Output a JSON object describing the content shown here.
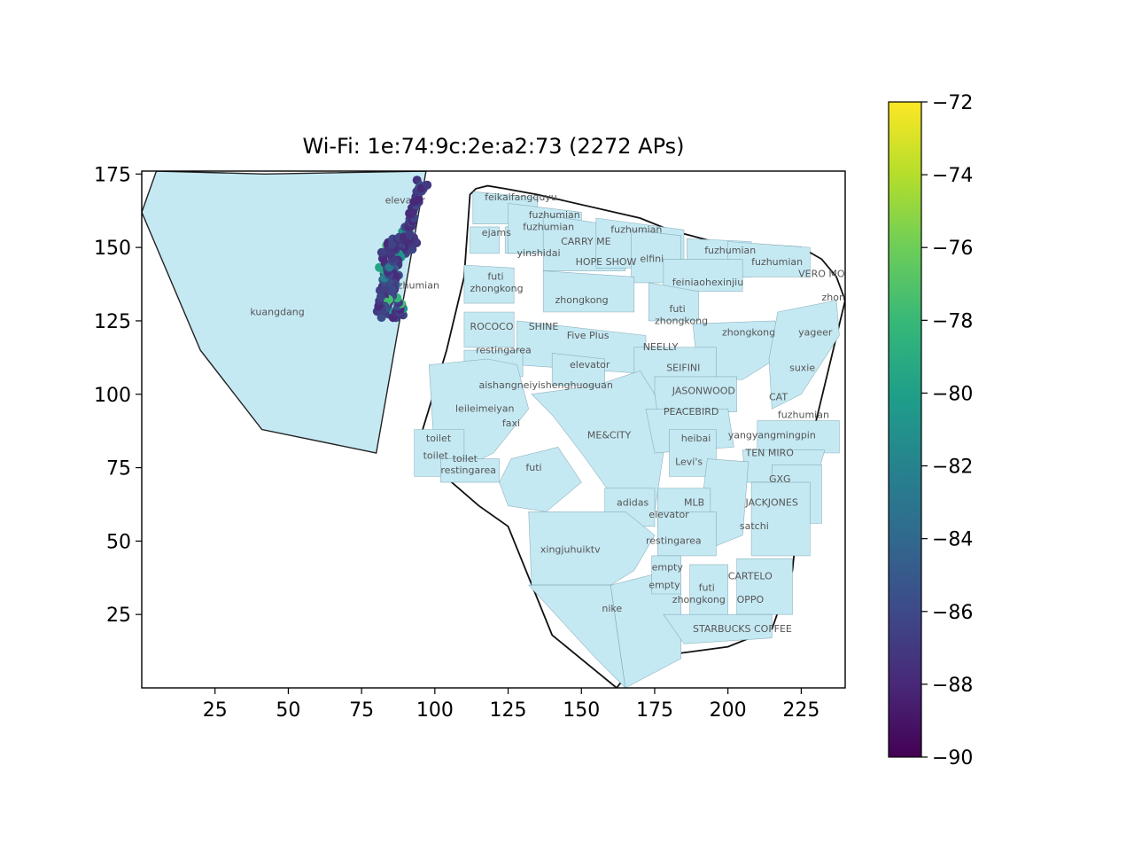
{
  "chart_data": {
    "type": "scatter",
    "title": "Wi-Fi: 1e:74:9c:2e:a2:73 (2272 APs)",
    "xlabel": "",
    "ylabel": "",
    "xlim": [
      0,
      240
    ],
    "ylim": [
      0,
      176
    ],
    "xticks": [
      25,
      50,
      75,
      100,
      125,
      150,
      175,
      200,
      225
    ],
    "yticks": [
      25,
      50,
      75,
      100,
      125,
      150,
      175
    ],
    "colorbar": {
      "colormap": "viridis",
      "range": [
        -90,
        -72
      ],
      "ticks": [
        -90,
        -88,
        -86,
        -84,
        -82,
        -80,
        -78,
        -76,
        -74,
        -72
      ],
      "tick_labels": [
        "−90",
        "−88",
        "−86",
        "−84",
        "−82",
        "−80",
        "−78",
        "−76",
        "−74",
        "−72"
      ]
    },
    "left_building": [
      [
        0,
        162
      ],
      [
        5,
        176
      ],
      [
        42,
        175
      ],
      [
        97,
        176
      ],
      [
        80,
        80
      ],
      [
        41,
        88
      ],
      [
        20,
        115
      ]
    ],
    "right_outline": [
      [
        112,
        168
      ],
      [
        114,
        170
      ],
      [
        118,
        171
      ],
      [
        124,
        170
      ],
      [
        135,
        168
      ],
      [
        170,
        160
      ],
      [
        180,
        156
      ],
      [
        195,
        152
      ],
      [
        210,
        151
      ],
      [
        225,
        150
      ],
      [
        232,
        146
      ],
      [
        237,
        140
      ],
      [
        240,
        132
      ],
      [
        225,
        70
      ],
      [
        222,
        40
      ],
      [
        215,
        20
      ],
      [
        200,
        14
      ],
      [
        170,
        10
      ],
      [
        162,
        0
      ],
      [
        140,
        18
      ],
      [
        125,
        55
      ],
      [
        115,
        62
      ],
      [
        100,
        75
      ],
      [
        95,
        78
      ],
      [
        94,
        82
      ],
      [
        98,
        95
      ],
      [
        104,
        115
      ],
      [
        110,
        140
      ]
    ],
    "shops": [
      [
        [
          113,
          169
        ],
        [
          135,
          167
        ],
        [
          135,
          158
        ],
        [
          113,
          158
        ]
      ],
      [
        [
          112,
          157
        ],
        [
          122,
          157
        ],
        [
          122,
          148
        ],
        [
          112,
          148
        ]
      ],
      [
        [
          124,
          157
        ],
        [
          134,
          157
        ],
        [
          134,
          148
        ],
        [
          124,
          148
        ]
      ],
      [
        [
          125,
          165
        ],
        [
          150,
          162
        ],
        [
          150,
          148
        ],
        [
          125,
          148
        ]
      ],
      [
        [
          137,
          161
        ],
        [
          165,
          157
        ],
        [
          165,
          142
        ],
        [
          137,
          142
        ]
      ],
      [
        [
          155,
          160
        ],
        [
          185,
          156
        ],
        [
          185,
          143
        ],
        [
          155,
          143
        ]
      ],
      [
        [
          167,
          156
        ],
        [
          184,
          154
        ],
        [
          184,
          138
        ],
        [
          167,
          138
        ]
      ],
      [
        [
          186,
          153
        ],
        [
          208,
          152
        ],
        [
          208,
          140
        ],
        [
          186,
          140
        ]
      ],
      [
        [
          200,
          152
        ],
        [
          228,
          150
        ],
        [
          228,
          140
        ],
        [
          200,
          140
        ]
      ],
      [
        [
          178,
          146
        ],
        [
          205,
          146
        ],
        [
          205,
          135
        ],
        [
          178,
          135
        ]
      ],
      [
        [
          110,
          144
        ],
        [
          127,
          143
        ],
        [
          127,
          131
        ],
        [
          110,
          131
        ]
      ],
      [
        [
          137,
          142
        ],
        [
          168,
          140
        ],
        [
          168,
          128
        ],
        [
          137,
          128
        ]
      ],
      [
        [
          173,
          138
        ],
        [
          190,
          135
        ],
        [
          190,
          125
        ],
        [
          173,
          125
        ]
      ],
      [
        [
          110,
          128
        ],
        [
          127,
          128
        ],
        [
          127,
          116
        ],
        [
          110,
          116
        ]
      ],
      [
        [
          128,
          125
        ],
        [
          172,
          120
        ],
        [
          172,
          107
        ],
        [
          128,
          110
        ]
      ],
      [
        [
          188,
          124
        ],
        [
          216,
          125
        ],
        [
          221,
          115
        ],
        [
          205,
          105
        ],
        [
          190,
          105
        ]
      ],
      [
        [
          217,
          128
        ],
        [
          237,
          132
        ],
        [
          238,
          120
        ],
        [
          225,
          100
        ],
        [
          215,
          95
        ],
        [
          214,
          112
        ]
      ],
      [
        [
          110,
          115
        ],
        [
          130,
          115
        ],
        [
          130,
          106
        ],
        [
          110,
          106
        ]
      ],
      [
        [
          140,
          114
        ],
        [
          158,
          112
        ],
        [
          158,
          103
        ],
        [
          140,
          103
        ]
      ],
      [
        [
          168,
          116
        ],
        [
          196,
          116
        ],
        [
          196,
          100
        ],
        [
          168,
          100
        ]
      ],
      [
        [
          175,
          106
        ],
        [
          203,
          106
        ],
        [
          203,
          94
        ],
        [
          175,
          94
        ]
      ],
      [
        [
          98,
          110
        ],
        [
          118,
          112
        ],
        [
          128,
          110
        ],
        [
          132,
          95
        ],
        [
          120,
          80
        ],
        [
          110,
          75
        ],
        [
          100,
          78
        ]
      ],
      [
        [
          133,
          100
        ],
        [
          155,
          103
        ],
        [
          170,
          108
        ],
        [
          175,
          100
        ],
        [
          178,
          80
        ],
        [
          175,
          60
        ],
        [
          168,
          55
        ],
        [
          150,
          80
        ],
        [
          140,
          93
        ]
      ],
      [
        [
          172,
          95
        ],
        [
          200,
          95
        ],
        [
          202,
          82
        ],
        [
          175,
          80
        ]
      ],
      [
        [
          180,
          88
        ],
        [
          196,
          88
        ],
        [
          196,
          72
        ],
        [
          180,
          72
        ]
      ],
      [
        [
          210,
          91
        ],
        [
          238,
          91
        ],
        [
          238,
          80
        ],
        [
          210,
          80
        ]
      ],
      [
        [
          205,
          81
        ],
        [
          233,
          81
        ],
        [
          230,
          70
        ],
        [
          206,
          70
        ]
      ],
      [
        [
          215,
          76
        ],
        [
          232,
          76
        ],
        [
          232,
          56
        ],
        [
          215,
          56
        ]
      ],
      [
        [
          208,
          70
        ],
        [
          228,
          70
        ],
        [
          228,
          45
        ],
        [
          208,
          45
        ]
      ],
      [
        [
          193,
          78
        ],
        [
          207,
          77
        ],
        [
          205,
          52
        ],
        [
          195,
          48
        ],
        [
          190,
          55
        ]
      ],
      [
        [
          176,
          68
        ],
        [
          194,
          68
        ],
        [
          194,
          55
        ],
        [
          176,
          55
        ]
      ],
      [
        [
          176,
          60
        ],
        [
          196,
          60
        ],
        [
          196,
          45
        ],
        [
          176,
          45
        ]
      ],
      [
        [
          158,
          68
        ],
        [
          175,
          68
        ],
        [
          175,
          55
        ],
        [
          158,
          55
        ]
      ],
      [
        [
          93,
          88
        ],
        [
          110,
          88
        ],
        [
          110,
          72
        ],
        [
          93,
          72
        ]
      ],
      [
        [
          102,
          78
        ],
        [
          122,
          78
        ],
        [
          122,
          70
        ],
        [
          102,
          70
        ]
      ],
      [
        [
          126,
          78
        ],
        [
          142,
          82
        ],
        [
          150,
          70
        ],
        [
          138,
          60
        ],
        [
          125,
          62
        ],
        [
          122,
          70
        ]
      ],
      [
        [
          132,
          60
        ],
        [
          165,
          60
        ],
        [
          175,
          52
        ],
        [
          168,
          40
        ],
        [
          160,
          35
        ],
        [
          133,
          35
        ]
      ],
      [
        [
          132,
          35
        ],
        [
          160,
          35
        ],
        [
          165,
          0
        ],
        [
          155,
          10
        ],
        [
          132,
          35
        ]
      ],
      [
        [
          160,
          35
        ],
        [
          180,
          40
        ],
        [
          184,
          35
        ],
        [
          184,
          10
        ],
        [
          165,
          0
        ]
      ],
      [
        [
          174,
          45
        ],
        [
          184,
          45
        ],
        [
          184,
          32
        ],
        [
          174,
          32
        ]
      ],
      [
        [
          187,
          42
        ],
        [
          200,
          42
        ],
        [
          200,
          20
        ],
        [
          187,
          20
        ]
      ],
      [
        [
          203,
          44
        ],
        [
          222,
          44
        ],
        [
          222,
          25
        ],
        [
          203,
          25
        ]
      ],
      [
        [
          178,
          25
        ],
        [
          215,
          25
        ],
        [
          215,
          17
        ],
        [
          185,
          15
        ]
      ]
    ],
    "shop_labels": [
      {
        "text": "feikaifangquyu",
        "x": 117,
        "y": 166
      },
      {
        "text": "ejams",
        "x": 116,
        "y": 154
      },
      {
        "text": "fuzhumian",
        "x": 132,
        "y": 160
      },
      {
        "text": "fuzhumian",
        "x": 130,
        "y": 156
      },
      {
        "text": "CARRY ME",
        "x": 143,
        "y": 151
      },
      {
        "text": "fuzhumian",
        "x": 160,
        "y": 155
      },
      {
        "text": "yinshidai",
        "x": 128,
        "y": 147
      },
      {
        "text": "HOPE SHOW",
        "x": 148,
        "y": 144
      },
      {
        "text": "elfini",
        "x": 170,
        "y": 145
      },
      {
        "text": "fuzhumian",
        "x": 192,
        "y": 148
      },
      {
        "text": "fuzhumian",
        "x": 208,
        "y": 144
      },
      {
        "text": "VERO MODA",
        "x": 224,
        "y": 140
      },
      {
        "text": "feiniaohexinjiu",
        "x": 181,
        "y": 137
      },
      {
        "text": "futi",
        "x": 118,
        "y": 139
      },
      {
        "text": "zhongkong",
        "x": 112,
        "y": 135
      },
      {
        "text": "zhongkong",
        "x": 141,
        "y": 131
      },
      {
        "text": "zhongkong",
        "x": 232,
        "y": 132
      },
      {
        "text": "futi",
        "x": 180,
        "y": 128
      },
      {
        "text": "zhongkong",
        "x": 175,
        "y": 124
      },
      {
        "text": "zhongkong",
        "x": 198,
        "y": 120
      },
      {
        "text": "yageer",
        "x": 224,
        "y": 120
      },
      {
        "text": "ROCOCO",
        "x": 112,
        "y": 122
      },
      {
        "text": "SHINE",
        "x": 132,
        "y": 122
      },
      {
        "text": "Five Plus",
        "x": 145,
        "y": 119
      },
      {
        "text": "NEELLY",
        "x": 171,
        "y": 115
      },
      {
        "text": "restingarea",
        "x": 114,
        "y": 114
      },
      {
        "text": "elevator",
        "x": 146,
        "y": 109
      },
      {
        "text": "SEIFINI",
        "x": 179,
        "y": 108
      },
      {
        "text": "suxie",
        "x": 221,
        "y": 108
      },
      {
        "text": "aishangneiyishenghuoguan",
        "x": 115,
        "y": 102
      },
      {
        "text": "JASONWOOD",
        "x": 181,
        "y": 100
      },
      {
        "text": "CAT",
        "x": 214,
        "y": 98
      },
      {
        "text": "leileimeiyan",
        "x": 107,
        "y": 94
      },
      {
        "text": "PEACEBIRD",
        "x": 178,
        "y": 93
      },
      {
        "text": "fuzhumian",
        "x": 217,
        "y": 92
      },
      {
        "text": "faxi",
        "x": 123,
        "y": 89
      },
      {
        "text": "ME&CITY",
        "x": 152,
        "y": 85
      },
      {
        "text": "heibai",
        "x": 184,
        "y": 84
      },
      {
        "text": "yangyangmingpin",
        "x": 200,
        "y": 85
      },
      {
        "text": "toilet",
        "x": 97,
        "y": 84
      },
      {
        "text": "toilet",
        "x": 96,
        "y": 78
      },
      {
        "text": "toilet",
        "x": 106,
        "y": 77
      },
      {
        "text": "TEN MIRO",
        "x": 206,
        "y": 79
      },
      {
        "text": "Levi's",
        "x": 182,
        "y": 76
      },
      {
        "text": "futi",
        "x": 131,
        "y": 74
      },
      {
        "text": "restingarea",
        "x": 102,
        "y": 73
      },
      {
        "text": "GXG",
        "x": 214,
        "y": 70
      },
      {
        "text": "adidas",
        "x": 162,
        "y": 62
      },
      {
        "text": "MLB",
        "x": 185,
        "y": 62
      },
      {
        "text": "JACKJONES",
        "x": 206,
        "y": 62
      },
      {
        "text": "elevator",
        "x": 173,
        "y": 58
      },
      {
        "text": "satchi",
        "x": 204,
        "y": 54
      },
      {
        "text": "restingarea",
        "x": 172,
        "y": 49
      },
      {
        "text": "xingjuhuiktv",
        "x": 136,
        "y": 46
      },
      {
        "text": "empty",
        "x": 174,
        "y": 40
      },
      {
        "text": "CARTELO",
        "x": 200,
        "y": 37
      },
      {
        "text": "empty",
        "x": 173,
        "y": 34
      },
      {
        "text": "futi",
        "x": 190,
        "y": 33
      },
      {
        "text": "zhongkong",
        "x": 181,
        "y": 29
      },
      {
        "text": "OPPO",
        "x": 203,
        "y": 29
      },
      {
        "text": "nike",
        "x": 157,
        "y": 26
      },
      {
        "text": "STARBUCKS COFFEE",
        "x": 188,
        "y": 19
      },
      {
        "text": "elevator",
        "x": 83,
        "y": 165
      },
      {
        "text": "fuzhumian",
        "x": 84,
        "y": 136
      },
      {
        "text": "kuangdang",
        "x": 37,
        "y": 127
      }
    ],
    "walk_path": [
      [
        95,
        172
      ],
      [
        93,
        168
      ],
      [
        92,
        163
      ],
      [
        91,
        158
      ],
      [
        90,
        154
      ],
      [
        89,
        150
      ],
      [
        88,
        146
      ],
      [
        87,
        142
      ],
      [
        86,
        139
      ],
      [
        85,
        135
      ],
      [
        84,
        131
      ],
      [
        84,
        128
      ],
      [
        86,
        127
      ],
      [
        88,
        127
      ],
      [
        89,
        129
      ],
      [
        88,
        131
      ],
      [
        86,
        133
      ],
      [
        84,
        132
      ],
      [
        83,
        129
      ],
      [
        83,
        133
      ],
      [
        82,
        137
      ],
      [
        82,
        141
      ],
      [
        82,
        145
      ],
      [
        83,
        149
      ],
      [
        84,
        152
      ],
      [
        86,
        152
      ],
      [
        88,
        151
      ],
      [
        90,
        149
      ],
      [
        92,
        149
      ],
      [
        93,
        152
      ],
      [
        91,
        154
      ],
      [
        90,
        156
      ],
      [
        89,
        152
      ],
      [
        88,
        149
      ],
      [
        87,
        146
      ],
      [
        86,
        143
      ],
      [
        86,
        139
      ],
      [
        85,
        136
      ],
      [
        84,
        133
      ],
      [
        82,
        130
      ],
      [
        81,
        127
      ],
      [
        82,
        133
      ],
      [
        83,
        138
      ],
      [
        84,
        143
      ],
      [
        85,
        147
      ],
      [
        86,
        151
      ],
      [
        88,
        153
      ],
      [
        90,
        154
      ],
      [
        91,
        157
      ],
      [
        92,
        160
      ],
      [
        93,
        164
      ],
      [
        94,
        167
      ],
      [
        95,
        170
      ],
      [
        97,
        171
      ]
    ],
    "point_count": 220
  }
}
